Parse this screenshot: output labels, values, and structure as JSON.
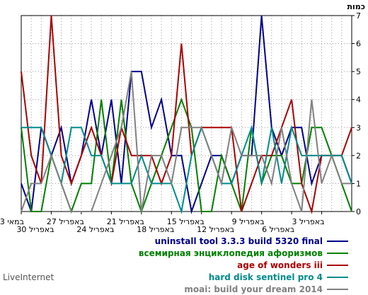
{
  "chart_data": {
    "type": "line",
    "ylabel": "כמות",
    "ylim": [
      0,
      7
    ],
    "y_ticks": [
      "0",
      "1",
      "2",
      "3",
      "4",
      "5",
      "6",
      "7"
    ],
    "x_tick_labels": [
      "3 במאי",
      "30 באפריל",
      "27 באפריל",
      "24 באפריל",
      "21 באפריל",
      "18 באפריל",
      "15 באפריל",
      "12 באפריל",
      "9 באפריל",
      "6 באפריל",
      "3 באפריל"
    ],
    "series": [
      {
        "name": "uninstall tool 3.3.3 build 5320 final",
        "color": "#00008b",
        "values": [
          1,
          0,
          3,
          2,
          3,
          1,
          2,
          4,
          2,
          4,
          1,
          5,
          5,
          3,
          4,
          2,
          2,
          0,
          1,
          2,
          2,
          1,
          2,
          2,
          7,
          3,
          2,
          3,
          3,
          1,
          2,
          2,
          2,
          1
        ]
      },
      {
        "name": "всемирная энциклопедия афоризмов",
        "color": "#008000",
        "values": [
          3,
          0,
          0,
          2,
          1,
          0,
          1,
          1,
          4,
          1,
          4,
          1,
          0,
          1,
          2,
          3,
          4,
          3,
          0,
          0,
          2,
          1,
          0,
          3,
          1,
          2,
          2,
          1,
          1,
          3,
          3,
          2,
          1,
          0
        ]
      },
      {
        "name": "age of wonders iii",
        "color": "#aa0000",
        "values": [
          5,
          2,
          1,
          7,
          2,
          1,
          2,
          3,
          2,
          1,
          3,
          2,
          2,
          2,
          1,
          2,
          6,
          2,
          3,
          3,
          3,
          3,
          0,
          1,
          2,
          2,
          3,
          4,
          1,
          0,
          2,
          2,
          2,
          3
        ]
      },
      {
        "name": "hard disk sentinel pro 4",
        "color": "#008b8b",
        "values": [
          3,
          3,
          3,
          2,
          1,
          3,
          3,
          2,
          2,
          1,
          1,
          1,
          2,
          1,
          1,
          1,
          0,
          2,
          3,
          2,
          1,
          1,
          2,
          3,
          1,
          3,
          1,
          3,
          2,
          2,
          2,
          2,
          2,
          1
        ]
      },
      {
        "name": "moai: build your dream 2014",
        "color": "#808080",
        "values": [
          0,
          1,
          1,
          2,
          1,
          0,
          0,
          0,
          1,
          2,
          3,
          5,
          0,
          2,
          2,
          1,
          3,
          3,
          3,
          2,
          1,
          3,
          2,
          2,
          2,
          1,
          3,
          1,
          0,
          4,
          1,
          2,
          1,
          1
        ]
      }
    ]
  },
  "brand": "LiveInternet"
}
